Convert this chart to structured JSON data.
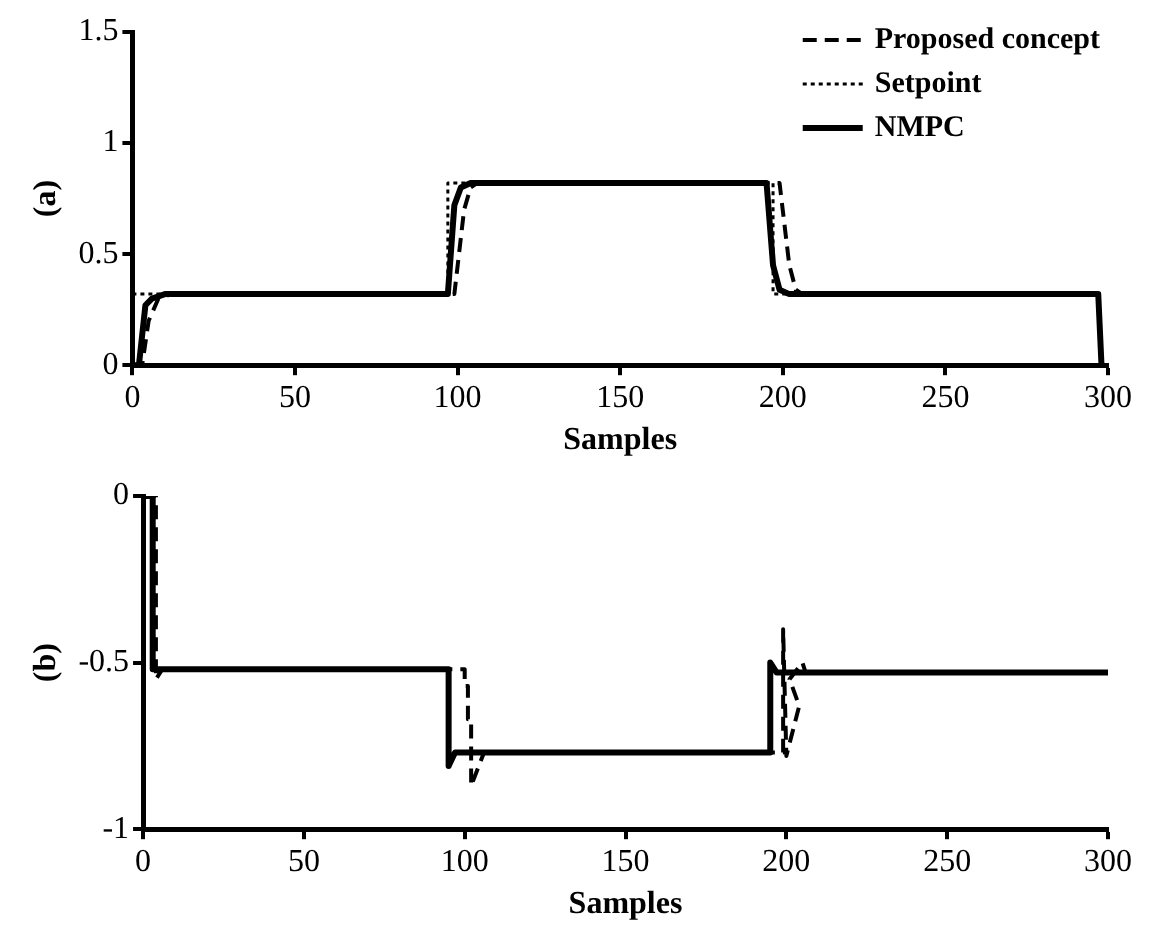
{
  "chart_data": [
    {
      "type": "line",
      "xlabel": "Samples",
      "ylabel": "(a)",
      "xlim": [
        0,
        300
      ],
      "xticks": [
        0,
        50,
        100,
        150,
        200,
        250,
        300
      ],
      "ylim": [
        0,
        1.5
      ],
      "yticks": [
        0,
        0.5,
        1,
        1.5
      ],
      "grid": false,
      "legend": "top right",
      "marker": "none",
      "series": [
        {
          "name": "Proposed concept",
          "color": "#000000",
          "line_style": "dashed",
          "x": [
            0,
            3,
            5,
            8,
            12,
            99,
            102,
            104,
            106,
            199,
            202,
            204,
            206,
            297,
            298
          ],
          "values": [
            0,
            0,
            0.2,
            0.3,
            0.32,
            0.32,
            0.7,
            0.8,
            0.82,
            0.82,
            0.45,
            0.34,
            0.32,
            0.32,
            0
          ]
        },
        {
          "name": "Setpoint",
          "color": "#000000",
          "line_style": "dotted",
          "x": [
            0,
            97,
            97,
            197,
            197,
            297,
            298
          ],
          "values": [
            0.32,
            0.32,
            0.82,
            0.82,
            0.32,
            0.32,
            0
          ]
        },
        {
          "name": "NMPC",
          "color": "#000000",
          "line_style": "solid",
          "x": [
            0,
            2,
            4,
            6,
            10,
            97,
            99,
            101,
            104,
            195,
            197,
            199,
            202,
            297,
            298
          ],
          "values": [
            0,
            0,
            0.27,
            0.3,
            0.32,
            0.32,
            0.72,
            0.8,
            0.82,
            0.82,
            0.45,
            0.34,
            0.32,
            0.32,
            0
          ]
        }
      ]
    },
    {
      "type": "line",
      "xlabel": "Samples",
      "ylabel": "(b)",
      "xlim": [
        0,
        300
      ],
      "xticks": [
        0,
        50,
        100,
        150,
        200,
        250,
        300
      ],
      "ylim": [
        -1,
        0
      ],
      "yticks": [
        -1,
        -0.5,
        0
      ],
      "grid": false,
      "legend": false,
      "marker": "none",
      "series": [
        {
          "color": "#000000",
          "line_style": "solid",
          "x": [
            0,
            3,
            3,
            95,
            95,
            97,
            195,
            195,
            197,
            300
          ],
          "values": [
            0,
            0,
            -0.52,
            -0.52,
            -0.81,
            -0.77,
            -0.77,
            -0.5,
            -0.53,
            -0.53
          ]
        },
        {
          "color": "#000000",
          "line_style": "dashed",
          "x": [
            0,
            4,
            4,
            6,
            100,
            100,
            101,
            101,
            102,
            102,
            106,
            199,
            199,
            200,
            204,
            201,
            205,
            206,
            300
          ],
          "values": [
            0,
            0,
            -0.55,
            -0.52,
            -0.52,
            -0.57,
            -0.57,
            -0.67,
            -0.67,
            -0.87,
            -0.77,
            -0.77,
            -0.4,
            -0.78,
            -0.63,
            -0.55,
            -0.5,
            -0.53,
            -0.53
          ]
        }
      ]
    }
  ]
}
